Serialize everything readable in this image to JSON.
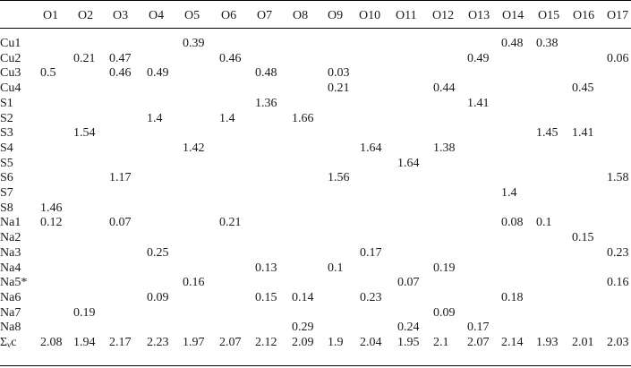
{
  "table": {
    "columns": [
      "O1",
      "O2",
      "O3",
      "O4",
      "O5",
      "O6",
      "O7",
      "O8",
      "O9",
      "O10",
      "O11",
      "O12",
      "O13",
      "O14",
      "O15",
      "O16",
      "O17"
    ],
    "rows": [
      {
        "label": "Cu1",
        "cells": [
          "",
          "",
          "",
          "",
          "0.39",
          "",
          "",
          "",
          "",
          "",
          "",
          "",
          "",
          "0.48",
          "0.38",
          "",
          ""
        ]
      },
      {
        "label": "Cu2",
        "cells": [
          "",
          "0.21",
          "0.47",
          "",
          "",
          "0.46",
          "",
          "",
          "",
          "",
          "",
          "",
          "0.49",
          "",
          "",
          "",
          "0.06"
        ]
      },
      {
        "label": "Cu3",
        "cells": [
          "0.5",
          "",
          "0.46",
          "0.49",
          "",
          "",
          "0.48",
          "",
          "0.03",
          "",
          "",
          "",
          "",
          "",
          "",
          "",
          ""
        ]
      },
      {
        "label": "Cu4",
        "cells": [
          "",
          "",
          "",
          "",
          "",
          "",
          "",
          "",
          "0.21",
          "",
          "",
          "0.44",
          "",
          "",
          "",
          "0.45",
          ""
        ]
      },
      {
        "label": "S1",
        "cells": [
          "",
          "",
          "",
          "",
          "",
          "",
          "1.36",
          "",
          "",
          "",
          "",
          "",
          "1.41",
          "",
          "",
          "",
          ""
        ]
      },
      {
        "label": "S2",
        "cells": [
          "",
          "",
          "",
          "1.4",
          "",
          "1.4",
          "",
          "1.66",
          "",
          "",
          "",
          "",
          "",
          "",
          "",
          "",
          ""
        ]
      },
      {
        "label": "S3",
        "cells": [
          "",
          "1.54",
          "",
          "",
          "",
          "",
          "",
          "",
          "",
          "",
          "",
          "",
          "",
          "",
          "1.45",
          "1.41",
          ""
        ]
      },
      {
        "label": "S4",
        "cells": [
          "",
          "",
          "",
          "",
          "1.42",
          "",
          "",
          "",
          "",
          "1.64",
          "",
          "1.38",
          "",
          "",
          "",
          "",
          ""
        ]
      },
      {
        "label": "S5",
        "cells": [
          "",
          "",
          "",
          "",
          "",
          "",
          "",
          "",
          "",
          "",
          "1.64",
          "",
          "",
          "",
          "",
          "",
          ""
        ]
      },
      {
        "label": "S6",
        "cells": [
          "",
          "",
          "1.17",
          "",
          "",
          "",
          "",
          "",
          "1.56",
          "",
          "",
          "",
          "",
          "",
          "",
          "",
          "1.58"
        ]
      },
      {
        "label": "S7",
        "cells": [
          "",
          "",
          "",
          "",
          "",
          "",
          "",
          "",
          "",
          "",
          "",
          "",
          "",
          "1.4",
          "",
          "",
          ""
        ]
      },
      {
        "label": "S8",
        "cells": [
          "1.46",
          "",
          "",
          "",
          "",
          "",
          "",
          "",
          "",
          "",
          "",
          "",
          "",
          "",
          "",
          "",
          ""
        ]
      },
      {
        "label": "Na1",
        "cells": [
          "0.12",
          "",
          "0.07",
          "",
          "",
          "0.21",
          "",
          "",
          "",
          "",
          "",
          "",
          "",
          "0.08",
          "0.1",
          "",
          ""
        ]
      },
      {
        "label": "Na2",
        "cells": [
          "",
          "",
          "",
          "",
          "",
          "",
          "",
          "",
          "",
          "",
          "",
          "",
          "",
          "",
          "",
          "0.15",
          ""
        ]
      },
      {
        "label": "Na3",
        "cells": [
          "",
          "",
          "",
          "0.25",
          "",
          "",
          "",
          "",
          "",
          "0.17",
          "",
          "",
          "",
          "",
          "",
          "",
          "0.23"
        ]
      },
      {
        "label": "Na4",
        "cells": [
          "",
          "",
          "",
          "",
          "",
          "",
          "0.13",
          "",
          "0.1",
          "",
          "",
          "0.19",
          "",
          "",
          "",
          "",
          ""
        ]
      },
      {
        "label": "Na5*",
        "cells": [
          "",
          "",
          "",
          "",
          "0.16",
          "",
          "",
          "",
          "",
          "",
          "0.07",
          "",
          "",
          "",
          "",
          "",
          "0.16"
        ]
      },
      {
        "label": "Na6",
        "cells": [
          "",
          "",
          "",
          "0.09",
          "",
          "",
          "0.15",
          "0.14",
          "",
          "0.23",
          "",
          "",
          "",
          "0.18",
          "",
          "",
          ""
        ]
      },
      {
        "label": "Na7",
        "cells": [
          "",
          "0.19",
          "",
          "",
          "",
          "",
          "",
          "",
          "",
          "",
          "",
          "0.09",
          "",
          "",
          "",
          "",
          ""
        ]
      },
      {
        "label": "Na8",
        "cells": [
          "",
          "",
          "",
          "",
          "",
          "",
          "",
          "0.29",
          "",
          "",
          "0.24",
          "",
          "0.17",
          "",
          "",
          "",
          ""
        ]
      }
    ],
    "sum_row": {
      "label_main": "Σ",
      "label_sub": "ν",
      "label_tail": "c",
      "cells": [
        "2.08",
        "1.94",
        "2.17",
        "2.23",
        "1.97",
        "2.07",
        "2.12",
        "2.09",
        "1.9",
        "2.04",
        "1.95",
        "2.1",
        "2.07",
        "2.14",
        "1.93",
        "2.01",
        "2.03"
      ]
    }
  }
}
